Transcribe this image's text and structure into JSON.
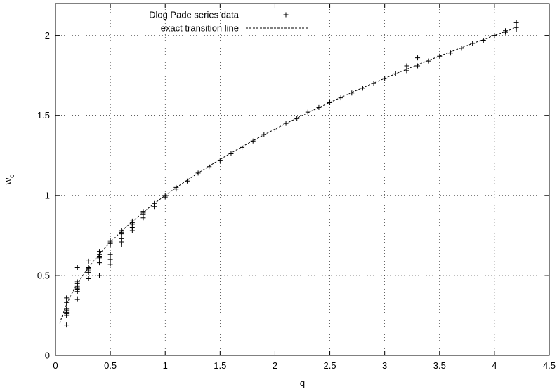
{
  "chart_data": {
    "type": "scatter",
    "xlabel": "q",
    "ylabel": "w",
    "ylabel_subscript": "c",
    "xlim": [
      0,
      4.5
    ],
    "ylim": [
      0,
      2.2
    ],
    "xticks": [
      "0",
      "0.5",
      "1",
      "1.5",
      "2",
      "2.5",
      "3",
      "3.5",
      "4",
      "4.5"
    ],
    "yticks": [
      "0",
      "0.5",
      "1",
      "1.5",
      "2"
    ],
    "grid": true,
    "legend_position": "top-left",
    "series": [
      {
        "name": "Dlog Pade series data",
        "marker": "+",
        "color": "#000000",
        "points": [
          [
            0.1,
            0.19
          ],
          [
            0.1,
            0.25
          ],
          [
            0.1,
            0.26
          ],
          [
            0.1,
            0.27
          ],
          [
            0.1,
            0.28
          ],
          [
            0.1,
            0.29
          ],
          [
            0.1,
            0.33
          ],
          [
            0.1,
            0.36
          ],
          [
            0.2,
            0.35
          ],
          [
            0.2,
            0.4
          ],
          [
            0.2,
            0.41
          ],
          [
            0.2,
            0.42
          ],
          [
            0.2,
            0.43
          ],
          [
            0.2,
            0.44
          ],
          [
            0.2,
            0.45
          ],
          [
            0.2,
            0.46
          ],
          [
            0.2,
            0.55
          ],
          [
            0.3,
            0.48
          ],
          [
            0.3,
            0.52
          ],
          [
            0.3,
            0.53
          ],
          [
            0.3,
            0.54
          ],
          [
            0.3,
            0.55
          ],
          [
            0.3,
            0.59
          ],
          [
            0.4,
            0.5
          ],
          [
            0.4,
            0.58
          ],
          [
            0.4,
            0.61
          ],
          [
            0.4,
            0.62
          ],
          [
            0.4,
            0.63
          ],
          [
            0.4,
            0.65
          ],
          [
            0.5,
            0.57
          ],
          [
            0.5,
            0.6
          ],
          [
            0.5,
            0.63
          ],
          [
            0.5,
            0.69
          ],
          [
            0.5,
            0.7
          ],
          [
            0.5,
            0.71
          ],
          [
            0.5,
            0.72
          ],
          [
            0.6,
            0.69
          ],
          [
            0.6,
            0.71
          ],
          [
            0.6,
            0.73
          ],
          [
            0.6,
            0.76
          ],
          [
            0.6,
            0.77
          ],
          [
            0.6,
            0.78
          ],
          [
            0.7,
            0.78
          ],
          [
            0.7,
            0.8
          ],
          [
            0.7,
            0.82
          ],
          [
            0.7,
            0.83
          ],
          [
            0.7,
            0.84
          ],
          [
            0.8,
            0.86
          ],
          [
            0.8,
            0.88
          ],
          [
            0.8,
            0.89
          ],
          [
            0.8,
            0.9
          ],
          [
            0.9,
            0.93
          ],
          [
            0.9,
            0.94
          ],
          [
            0.9,
            0.95
          ],
          [
            1.0,
            0.99
          ],
          [
            1.0,
            1.0
          ],
          [
            1.1,
            1.04
          ],
          [
            1.1,
            1.05
          ],
          [
            1.2,
            1.09
          ],
          [
            1.3,
            1.14
          ],
          [
            1.4,
            1.18
          ],
          [
            1.5,
            1.22
          ],
          [
            1.6,
            1.26
          ],
          [
            1.7,
            1.3
          ],
          [
            1.8,
            1.34
          ],
          [
            1.9,
            1.38
          ],
          [
            2.0,
            1.41
          ],
          [
            2.1,
            1.45
          ],
          [
            2.2,
            1.48
          ],
          [
            2.3,
            1.52
          ],
          [
            2.4,
            1.55
          ],
          [
            2.5,
            1.58
          ],
          [
            2.6,
            1.61
          ],
          [
            2.7,
            1.64
          ],
          [
            2.8,
            1.67
          ],
          [
            2.9,
            1.7
          ],
          [
            3.0,
            1.73
          ],
          [
            3.1,
            1.76
          ],
          [
            3.2,
            1.78
          ],
          [
            3.2,
            1.79
          ],
          [
            3.2,
            1.81
          ],
          [
            3.3,
            1.81
          ],
          [
            3.3,
            1.86
          ],
          [
            3.4,
            1.84
          ],
          [
            3.5,
            1.87
          ],
          [
            3.6,
            1.89
          ],
          [
            3.7,
            1.92
          ],
          [
            3.8,
            1.95
          ],
          [
            3.9,
            1.97
          ],
          [
            4.0,
            2.0
          ],
          [
            4.1,
            2.02
          ],
          [
            4.1,
            2.03
          ],
          [
            4.2,
            2.04
          ],
          [
            4.2,
            2.05
          ],
          [
            4.2,
            2.08
          ]
        ]
      },
      {
        "name": "exact transition line",
        "line_style": "dashed",
        "color": "#000000",
        "function": "sqrt(q)",
        "x_range": [
          0.04,
          4.2
        ]
      }
    ]
  }
}
